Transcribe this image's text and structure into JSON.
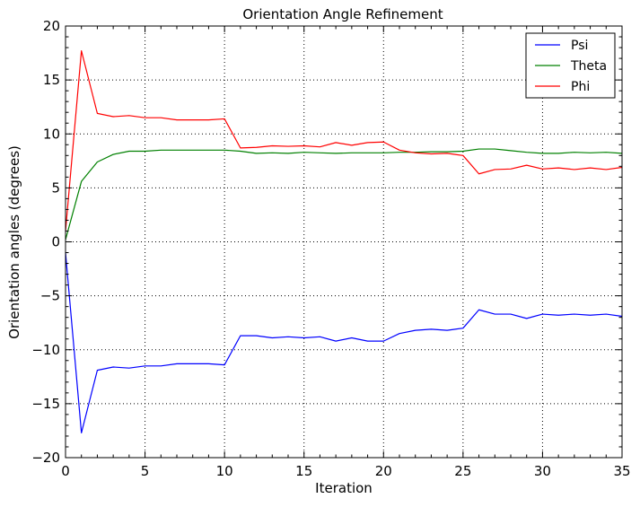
{
  "chart_data": {
    "type": "line",
    "title": "Orientation Angle Refinement",
    "xlabel": "Iteration",
    "ylabel": "Orientation angles (degrees)",
    "xlim": [
      0,
      35
    ],
    "ylim": [
      -20,
      20
    ],
    "xticks": [
      0,
      5,
      10,
      15,
      20,
      25,
      30,
      35
    ],
    "yticks": [
      -20,
      -15,
      -10,
      -5,
      0,
      5,
      10,
      15,
      20
    ],
    "xtick_labels": [
      "0",
      "5",
      "10",
      "15",
      "20",
      "25",
      "30",
      "35"
    ],
    "ytick_labels": [
      "−20",
      "−15",
      "−10",
      "−5",
      "0",
      "5",
      "10",
      "15",
      "20"
    ],
    "grid": true,
    "legend_position": "top-right",
    "x": [
      0,
      1,
      2,
      3,
      4,
      5,
      6,
      7,
      8,
      9,
      10,
      11,
      12,
      13,
      14,
      15,
      16,
      17,
      18,
      19,
      20,
      21,
      22,
      23,
      24,
      25,
      26,
      27,
      28,
      29,
      30,
      31,
      32,
      33,
      34,
      35
    ],
    "series": [
      {
        "name": "Psi",
        "color": "#0000ff",
        "values": [
          -1.0,
          -17.7,
          -11.9,
          -11.6,
          -11.7,
          -11.5,
          -11.5,
          -11.3,
          -11.3,
          -11.3,
          -11.4,
          -8.7,
          -8.7,
          -8.9,
          -8.8,
          -8.9,
          -8.8,
          -9.2,
          -8.9,
          -9.2,
          -9.2,
          -8.5,
          -8.2,
          -8.1,
          -8.2,
          -8.0,
          -6.3,
          -6.7,
          -6.7,
          -7.1,
          -6.7,
          -6.8,
          -6.7,
          -6.8,
          -6.7,
          -6.9
        ]
      },
      {
        "name": "Theta",
        "color": "#008000",
        "values": [
          0.2,
          5.6,
          7.4,
          8.1,
          8.4,
          8.4,
          8.5,
          8.5,
          8.5,
          8.5,
          8.5,
          8.4,
          8.2,
          8.25,
          8.2,
          8.3,
          8.25,
          8.2,
          8.25,
          8.25,
          8.25,
          8.3,
          8.3,
          8.35,
          8.35,
          8.4,
          8.6,
          8.6,
          8.45,
          8.3,
          8.2,
          8.2,
          8.3,
          8.25,
          8.3,
          8.2
        ]
      },
      {
        "name": "Phi",
        "color": "#ff0000",
        "values": [
          1.0,
          17.7,
          11.9,
          11.6,
          11.7,
          11.5,
          11.5,
          11.3,
          11.3,
          11.3,
          11.4,
          8.7,
          8.75,
          8.9,
          8.85,
          8.9,
          8.8,
          9.2,
          8.95,
          9.2,
          9.25,
          8.5,
          8.25,
          8.15,
          8.2,
          8.0,
          6.3,
          6.7,
          6.75,
          7.1,
          6.75,
          6.85,
          6.7,
          6.85,
          6.7,
          6.9
        ]
      }
    ]
  }
}
